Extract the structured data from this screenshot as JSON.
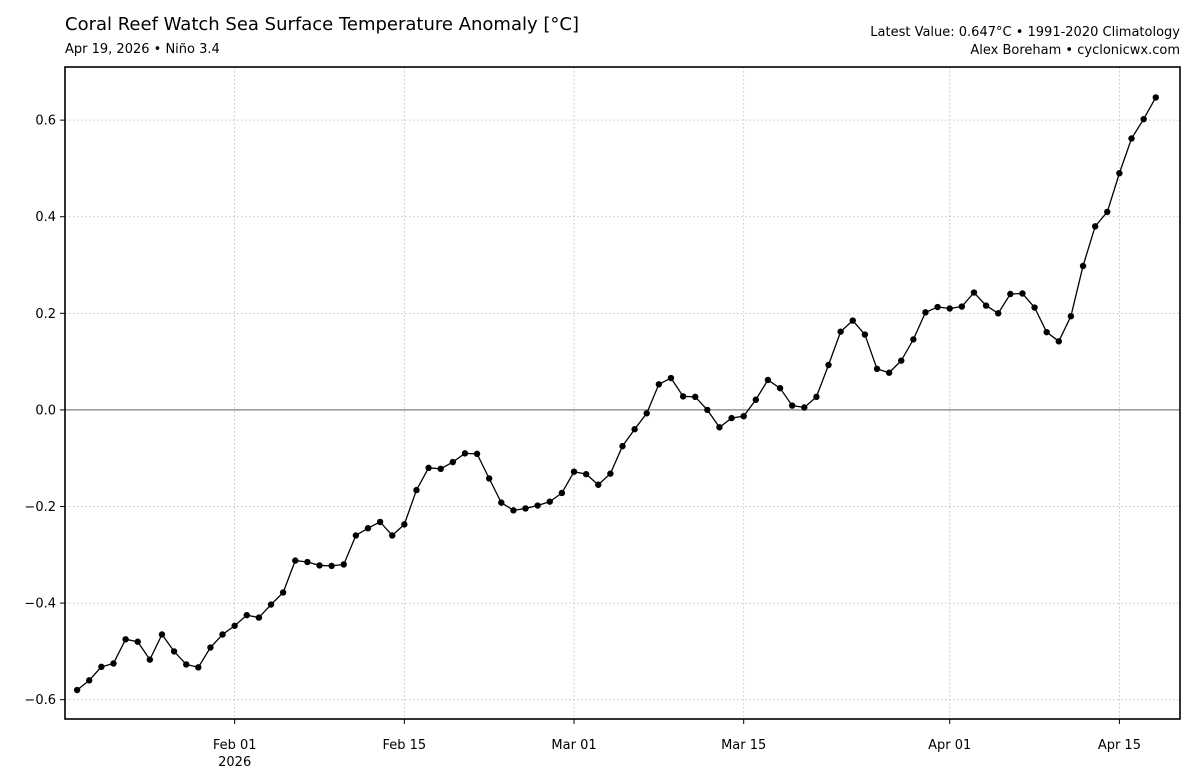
{
  "header": {
    "title": "Coral Reef Watch Sea Surface Temperature Anomaly [°C]",
    "subtitle": "Apr 19, 2026 • Niño 3.4",
    "info_line1": "Latest Value: 0.647°C • 1991-2020 Climatology",
    "info_line2": "Alex Boreham • cyclonicwx.com"
  },
  "chart_data": {
    "type": "line",
    "title": "Coral Reef Watch Sea Surface Temperature Anomaly [°C]",
    "xlabel": "",
    "ylabel": "",
    "x_start": "2026-01-19",
    "x_step_days": 1,
    "xlim": [
      "2026-01-18",
      "2026-04-20"
    ],
    "ylim": [
      -0.64,
      0.71
    ],
    "y_ticks": [
      -0.6,
      -0.4,
      -0.2,
      0.0,
      0.2,
      0.4,
      0.6
    ],
    "y_tick_labels": [
      "−0.6",
      "−0.4",
      "−0.2",
      "0.0",
      "0.2",
      "0.4",
      "0.6"
    ],
    "x_ticks": [
      {
        "date": "2026-02-01",
        "label": "Feb 01",
        "sublabel": "2026"
      },
      {
        "date": "2026-02-15",
        "label": "Feb 15",
        "sublabel": ""
      },
      {
        "date": "2026-03-01",
        "label": "Mar 01",
        "sublabel": ""
      },
      {
        "date": "2026-03-15",
        "label": "Mar 15",
        "sublabel": ""
      },
      {
        "date": "2026-04-01",
        "label": "Apr 01",
        "sublabel": ""
      },
      {
        "date": "2026-04-15",
        "label": "Apr 15",
        "sublabel": ""
      }
    ],
    "grid": true,
    "zero_line": true,
    "series": [
      {
        "color": "#000000",
        "values": [
          -0.58,
          -0.56,
          -0.532,
          -0.525,
          -0.475,
          -0.48,
          -0.517,
          -0.465,
          -0.5,
          -0.527,
          -0.533,
          -0.492,
          -0.465,
          -0.447,
          -0.425,
          -0.43,
          -0.403,
          -0.378,
          -0.312,
          -0.315,
          -0.322,
          -0.323,
          -0.32,
          -0.26,
          -0.245,
          -0.232,
          -0.26,
          -0.237,
          -0.166,
          -0.12,
          -0.122,
          -0.108,
          -0.09,
          -0.091,
          -0.142,
          -0.192,
          -0.208,
          -0.204,
          -0.198,
          -0.19,
          -0.172,
          -0.128,
          -0.133,
          -0.155,
          -0.132,
          -0.075,
          -0.04,
          -0.007,
          0.053,
          0.066,
          0.028,
          0.027,
          0.0,
          -0.036,
          -0.017,
          -0.013,
          0.021,
          0.062,
          0.045,
          0.009,
          0.005,
          0.027,
          0.093,
          0.162,
          0.185,
          0.156,
          0.085,
          0.077,
          0.102,
          0.146,
          0.202,
          0.213,
          0.21,
          0.214,
          0.243,
          0.216,
          0.2,
          0.24,
          0.241,
          0.212,
          0.161,
          0.142,
          0.194,
          0.298,
          0.38,
          0.41,
          0.49,
          0.562,
          0.602,
          0.647
        ]
      }
    ]
  }
}
